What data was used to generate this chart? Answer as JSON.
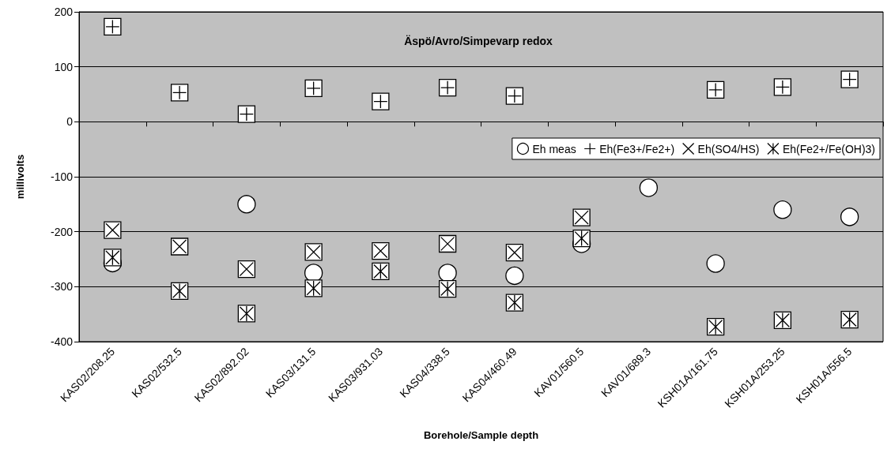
{
  "chart_data": {
    "type": "scatter",
    "title": "Äspö/Avro/Simpevarp redox",
    "xlabel": "Borehole/Sample depth",
    "ylabel": "millivolts",
    "categories": [
      "KAS02/208.25",
      "KAS02/532.5",
      "KAS02/892.02",
      "KAS03/131.5",
      "KAS03/931.03",
      "KAS04/338.5",
      "KAS04/460.49",
      "KAV01/560.5",
      "KAV01/689.3",
      "KSH01A/161.75",
      "KSH01A/253.25",
      "KSH01A/556.5"
    ],
    "series": [
      {
        "name": "Eh meas",
        "color": "#000000",
        "marker": "circle",
        "values": [
          -257,
          null,
          -150,
          -275,
          null,
          -275,
          -280,
          -222,
          -120,
          -258,
          -160,
          -173
        ]
      },
      {
        "name": "Eh(Fe3+/Fe2+)",
        "color": "#000000",
        "marker": "cross",
        "values": [
          173,
          53,
          14,
          61,
          37,
          62,
          47,
          null,
          null,
          58,
          63,
          77
        ]
      },
      {
        "name": "Eh(SO4/HS)",
        "color": "#000000",
        "marker": "cross",
        "values": [
          -197,
          -227,
          -268,
          -237,
          -235,
          -222,
          -238,
          -174,
          null,
          null,
          null,
          null
        ]
      },
      {
        "name": "Eh(Fe2+/Fe(OH)3)",
        "color": "#000000",
        "marker": "cross",
        "values": [
          -247,
          -308,
          -349,
          -303,
          -272,
          -304,
          -329,
          -212,
          null,
          -373,
          -361,
          -360
        ]
      }
    ],
    "ylim": [
      -400,
      200
    ],
    "yticks": [
      -400,
      -300,
      -200,
      -100,
      0,
      100,
      200
    ],
    "grid": "y",
    "legend": "right"
  }
}
